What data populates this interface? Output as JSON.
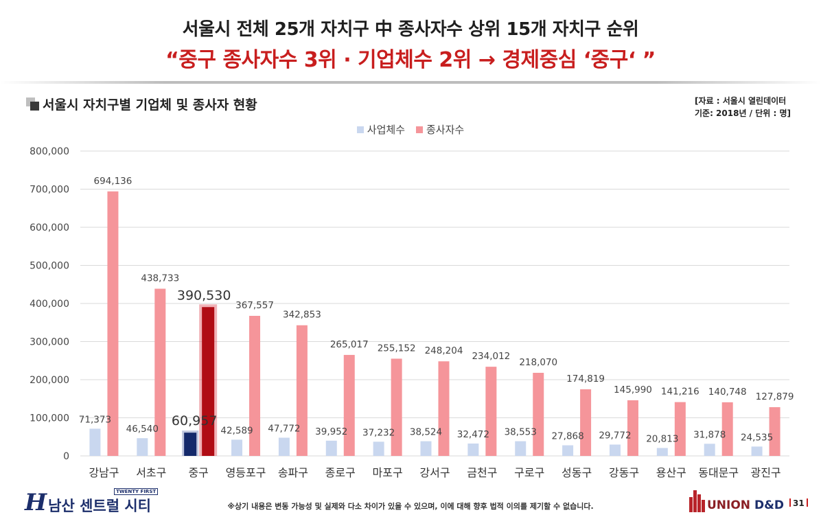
{
  "header": {
    "title": "서울시 전체 25개 자치구 中 종사자수 상위 15개 자치구 순위",
    "subtitle": "“중구 종사자수 3위 · 기업체수 2위 → 경제중심 ‘중구‘ ”"
  },
  "section": {
    "title": "서울시 자치구별 기업체 및 종사자 현황",
    "source_line1": "[자료 : 서울시 열린데이터",
    "source_line2": "기준: 2018년 / 단위 : 명]"
  },
  "chart_data": {
    "type": "bar",
    "categories": [
      "강남구",
      "서초구",
      "중구",
      "영등포구",
      "송파구",
      "종로구",
      "마포구",
      "강서구",
      "금천구",
      "구로구",
      "성동구",
      "강동구",
      "용산구",
      "동대문구",
      "광진구"
    ],
    "series": [
      {
        "name": "사업체수",
        "values": [
          71373,
          46540,
          60957,
          42589,
          47772,
          39952,
          37232,
          38524,
          32472,
          38553,
          27868,
          29772,
          20813,
          31878,
          24535
        ],
        "labels": [
          "71,373",
          "46,540",
          "60,957",
          "42,589",
          "47,772",
          "39,952",
          "37,232",
          "38,524",
          "32,472",
          "38,553",
          "27,868",
          "29,772",
          "20,813",
          "31,878",
          "24,535"
        ]
      },
      {
        "name": "종사자수",
        "values": [
          694136,
          438733,
          390530,
          367557,
          342853,
          265017,
          255152,
          248204,
          234012,
          218070,
          174819,
          145990,
          141216,
          140748,
          127879
        ],
        "labels": [
          "694,136",
          "438,733",
          "390,530",
          "367,557",
          "342,853",
          "265,017",
          "255,152",
          "248,204",
          "234,012",
          "218,070",
          "174,819",
          "145,990",
          "141,216",
          "140,748",
          "127,879"
        ]
      }
    ],
    "yticks": [
      "0",
      "100,000",
      "200,000",
      "300,000",
      "400,000",
      "500,000",
      "600,000",
      "700,000",
      "800,000"
    ],
    "ylim": [
      0,
      800000
    ],
    "highlight_category": "중구",
    "colors": {
      "business": "#c9d7ef",
      "employee": "#f5959a",
      "business_highlight": "#14296a",
      "employee_highlight": "#b00c14",
      "grid": "#d9d9d9"
    },
    "grid": true,
    "legend": "top-center"
  },
  "footer": {
    "brand_mark": "H",
    "brand_tag": "TWENTY FIRST",
    "brand_name": "남산 센트럴 시티",
    "disclaimer": "※상기 내용은 변동 가능성 및 실제와 다소 차이가 있을 수 있으며, 이에 대해 향후 법적 이의를 제기할 수 없습니다.",
    "union_name_a": "UNION ",
    "union_name_b": "D&D",
    "page_number": "31"
  }
}
